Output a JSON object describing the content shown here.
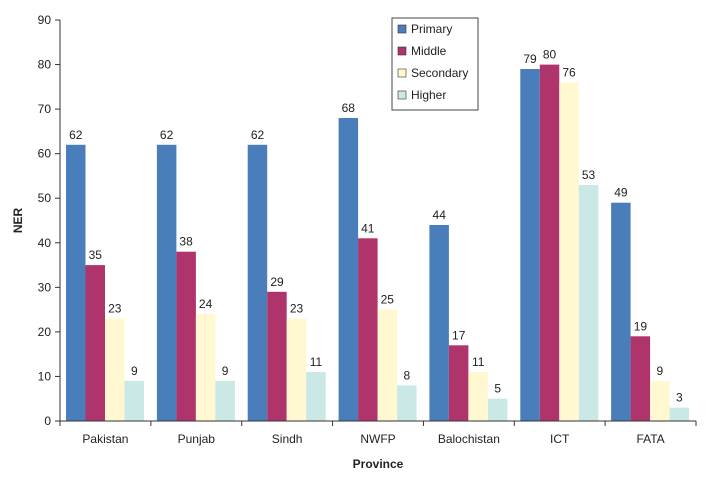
{
  "chart_data": {
    "type": "bar",
    "title": "",
    "xlabel": "Province",
    "ylabel": "NER",
    "categories": [
      "Pakistan",
      "Punjab",
      "Sindh",
      "NWFP",
      "Balochistan",
      "ICT",
      "FATA"
    ],
    "series": [
      {
        "name": "Primary",
        "color": "#4a7ebb",
        "values": [
          62,
          62,
          62,
          68,
          44,
          79,
          49
        ]
      },
      {
        "name": "Middle",
        "color": "#b0346c",
        "values": [
          35,
          38,
          29,
          41,
          17,
          80,
          19
        ]
      },
      {
        "name": "Secondary",
        "color": "#fff8d0",
        "values": [
          23,
          24,
          23,
          25,
          11,
          76,
          9
        ]
      },
      {
        "name": "Higher",
        "color": "#c9e8e6",
        "values": [
          9,
          9,
          11,
          8,
          5,
          53,
          3
        ]
      }
    ],
    "ylim": [
      0,
      90
    ],
    "yticks": [
      0,
      10,
      20,
      30,
      40,
      50,
      60,
      70,
      80,
      90
    ],
    "grid": false,
    "legend_position": "top-center",
    "data_labels": true
  }
}
